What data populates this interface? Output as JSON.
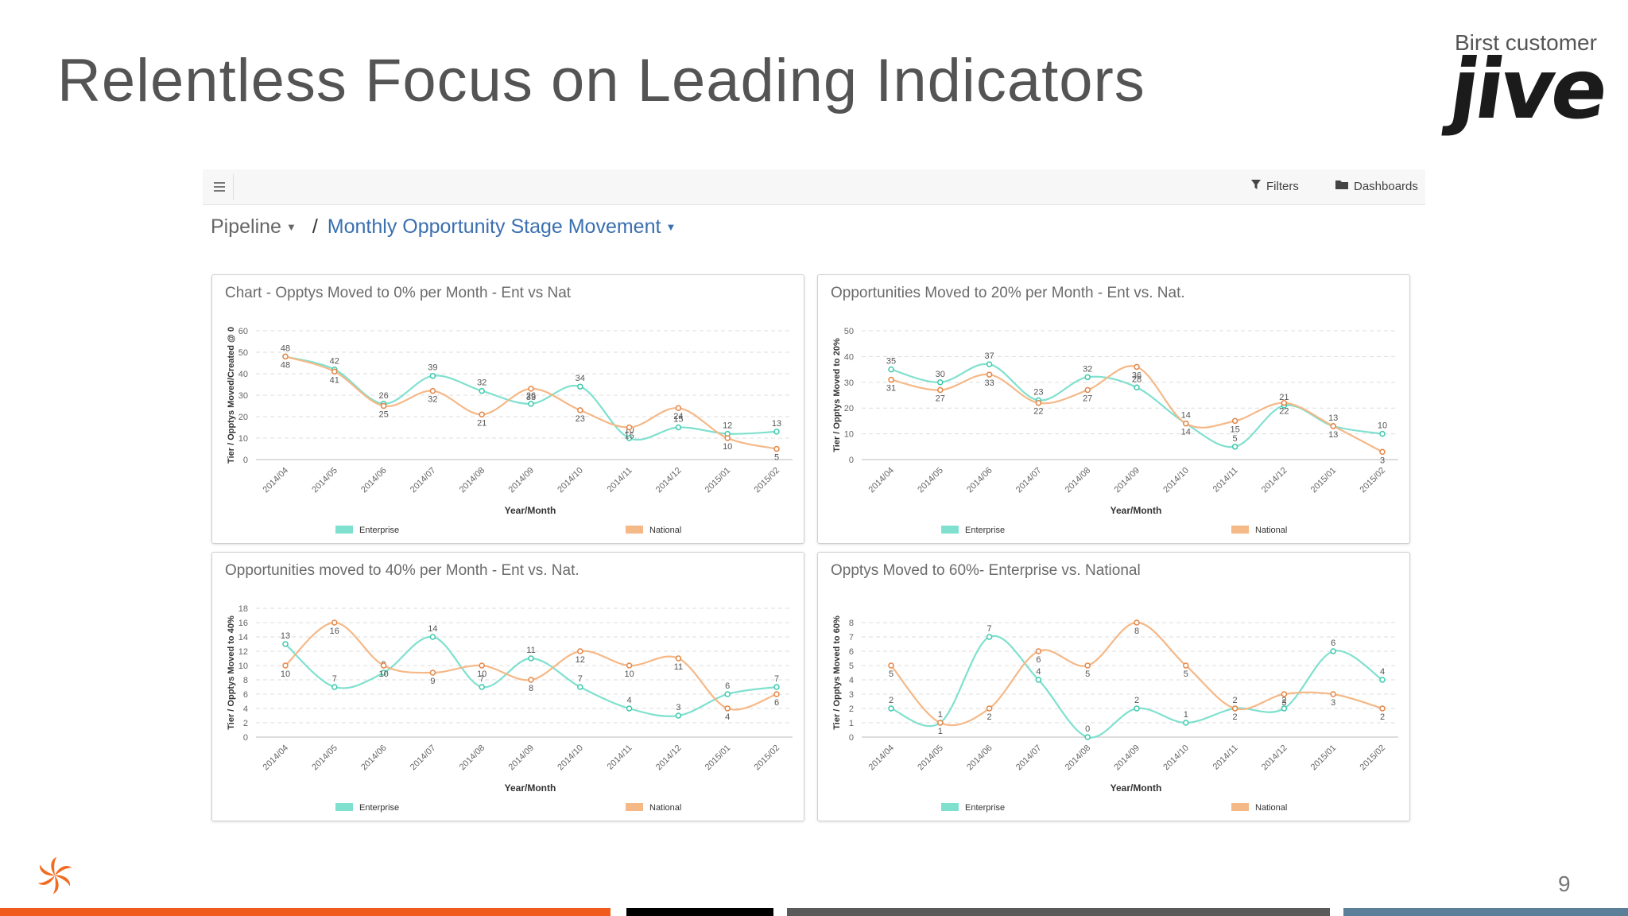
{
  "slide": {
    "title": "Relentless Focus on Leading Indicators",
    "logo_caption": "Birst customer",
    "logo_word": "jive",
    "page_number": "9",
    "footer_colors": [
      "#f05a1a",
      "#000000",
      "#5a5a5a",
      "#5b7f98"
    ]
  },
  "toolbar": {
    "menu_icon": "hamburger-icon",
    "filters_label": "Filters",
    "filters_icon": "funnel-icon",
    "dashboards_label": "Dashboards",
    "dashboards_icon": "folder-icon"
  },
  "breadcrumb": {
    "root": "Pipeline",
    "separator": "/",
    "current": "Monthly Opportunity Stage Movement"
  },
  "colors": {
    "enterprise": "#7fe0cf",
    "national": "#f5b887",
    "ent_point": "#3cc9ad",
    "nat_point": "#e58545"
  },
  "chart_data": [
    {
      "type": "line",
      "title": "Chart - Opptys Moved to 0% per Month - Ent vs Nat",
      "xlabel": "Year/Month",
      "ylabel": "Tier / Opptys Moved/Created @ 0",
      "ylim": [
        0,
        60
      ],
      "yticks": [
        0,
        10,
        20,
        30,
        40,
        50,
        60
      ],
      "grid": true,
      "legend": "bottom",
      "categories": [
        "2014/04",
        "2014/05",
        "2014/06",
        "2014/07",
        "2014/08",
        "2014/09",
        "2014/10",
        "2014/11",
        "2014/12",
        "2015/01",
        "2015/02"
      ],
      "series": [
        {
          "name": "Enterprise",
          "values": [
            48,
            42,
            26,
            39,
            32,
            26,
            34,
            10,
            15,
            12,
            13
          ]
        },
        {
          "name": "National",
          "values": [
            48,
            41,
            25,
            32,
            21,
            33,
            23,
            15,
            24,
            10,
            5
          ]
        }
      ]
    },
    {
      "type": "line",
      "title": "Opportunities Moved to 20% per Month - Ent vs. Nat.",
      "xlabel": "Year/Month",
      "ylabel": "Tier / Opptys Moved to 20%",
      "ylim": [
        0,
        50
      ],
      "yticks": [
        0,
        10,
        20,
        30,
        40,
        50
      ],
      "grid": true,
      "legend": "bottom",
      "categories": [
        "2014/04",
        "2014/05",
        "2014/06",
        "2014/07",
        "2014/08",
        "2014/09",
        "2014/10",
        "2014/11",
        "2014/12",
        "2015/01",
        "2015/02"
      ],
      "series": [
        {
          "name": "Enterprise",
          "values": [
            35,
            30,
            37,
            23,
            32,
            28,
            14,
            5,
            21,
            13,
            10
          ]
        },
        {
          "name": "National",
          "values": [
            31,
            27,
            33,
            22,
            27,
            36,
            14,
            15,
            22,
            13,
            3
          ]
        }
      ]
    },
    {
      "type": "line",
      "title": "Opportunities moved to 40% per Month - Ent vs. Nat.",
      "xlabel": "Year/Month",
      "ylabel": "Tier / Opptys Moved to 40%",
      "ylim": [
        0,
        18
      ],
      "yticks": [
        0,
        2,
        4,
        6,
        8,
        10,
        12,
        14,
        16,
        18
      ],
      "grid": true,
      "legend": "bottom",
      "categories": [
        "2014/04",
        "2014/05",
        "2014/06",
        "2014/07",
        "2014/08",
        "2014/09",
        "2014/10",
        "2014/11",
        "2014/12",
        "2015/01",
        "2015/02"
      ],
      "series": [
        {
          "name": "Enterprise",
          "values": [
            13,
            7,
            9,
            14,
            7,
            11,
            7,
            4,
            3,
            6,
            7
          ]
        },
        {
          "name": "National",
          "values": [
            10,
            16,
            10,
            9,
            10,
            8,
            12,
            10,
            11,
            4,
            6
          ]
        }
      ]
    },
    {
      "type": "line",
      "title": "Opptys Moved to 60%- Enterprise vs. National",
      "xlabel": "Year/Month",
      "ylabel": "Tier / Opptys Moved to 60%",
      "ylim": [
        0,
        9
      ],
      "yticks": [
        0,
        1,
        2,
        3,
        4,
        5,
        6,
        7,
        8
      ],
      "grid": true,
      "legend": "bottom",
      "categories": [
        "2014/04",
        "2014/05",
        "2014/06",
        "2014/07",
        "2014/08",
        "2014/09",
        "2014/10",
        "2014/11",
        "2014/12",
        "2015/01",
        "2015/02"
      ],
      "series": [
        {
          "name": "Enterprise",
          "values": [
            2,
            1,
            7,
            4,
            0,
            2,
            1,
            2,
            2,
            6,
            4
          ]
        },
        {
          "name": "National",
          "values": [
            5,
            1,
            2,
            6,
            5,
            8,
            5,
            2,
            3,
            3,
            2
          ]
        }
      ]
    }
  ]
}
